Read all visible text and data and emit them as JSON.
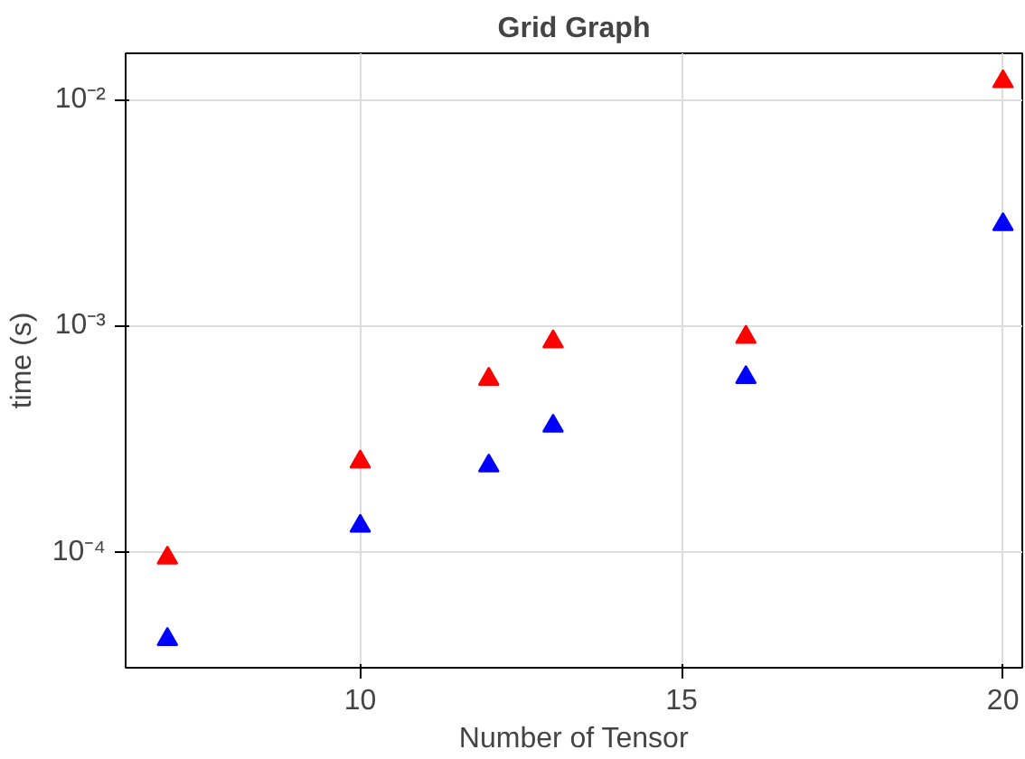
{
  "chart_data": {
    "type": "scatter",
    "title": "Grid Graph",
    "xlabel": "Number of Tensor",
    "ylabel": "time (s)",
    "log": "y",
    "grid": true,
    "marker": "triangle",
    "xlim": [
      6.35,
      20.3
    ],
    "xticks": [
      10,
      15,
      20
    ],
    "ylim": [
      3.07e-05,
      0.016
    ],
    "yticks": [
      {
        "value": 0.0001,
        "label": "10⁻⁴"
      },
      {
        "value": 0.001,
        "label": "10⁻³"
      },
      {
        "value": 0.01,
        "label": "10⁻²"
      }
    ],
    "series": [
      {
        "color": "#ff0000",
        "x": [
          7,
          10,
          12,
          13,
          16,
          20
        ],
        "values": [
          9.4e-05,
          0.00025,
          0.00058,
          0.00085,
          0.00089,
          0.012
        ]
      },
      {
        "color": "#0000ff",
        "x": [
          7,
          10,
          12,
          13,
          16,
          20
        ],
        "values": [
          4.1e-05,
          0.00013,
          0.00024,
          0.00036,
          0.00059,
          0.0028
        ]
      }
    ]
  }
}
